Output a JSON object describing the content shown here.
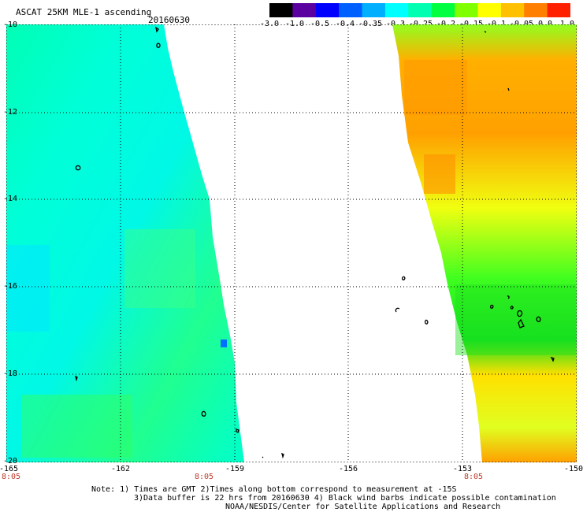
{
  "header": {
    "title": "ASCAT 25KM MLE-1 ascending",
    "date": "20160630"
  },
  "colorbar": {
    "labels": [
      "-3.0",
      "-1.0",
      "-0.5",
      "-0.4",
      "-0.35",
      "-0.3",
      "-0.25",
      "-0.2",
      "-0.15",
      "-0.1",
      "-0.05",
      "0.0",
      "1.0"
    ],
    "colors": [
      "#000000",
      "#5a00a0",
      "#0000ff",
      "#0060ff",
      "#00b0ff",
      "#00ffff",
      "#00ffb0",
      "#00ff40",
      "#80ff00",
      "#ffff00",
      "#ffc000",
      "#ff8000",
      "#ff2000"
    ]
  },
  "map": {
    "lat_ticks": [
      "-10",
      "-12",
      "-14",
      "-16",
      "-18",
      "-20"
    ],
    "lon_ticks": [
      "-165",
      "-162",
      "-159",
      "-156",
      "-153",
      "-150"
    ],
    "time_labels": [
      "8:05",
      "8:05",
      "8:05"
    ]
  },
  "footer": {
    "line1": "Note: 1) Times are GMT 2)Times along bottom correspond to measurement at -15S",
    "line2": "3)Data buffer is 22 hrs from 20160630 4) Black wind barbs indicate possible contamination",
    "line3": "NOAA/NESDIS/Center for Satellite Applications and Research"
  }
}
